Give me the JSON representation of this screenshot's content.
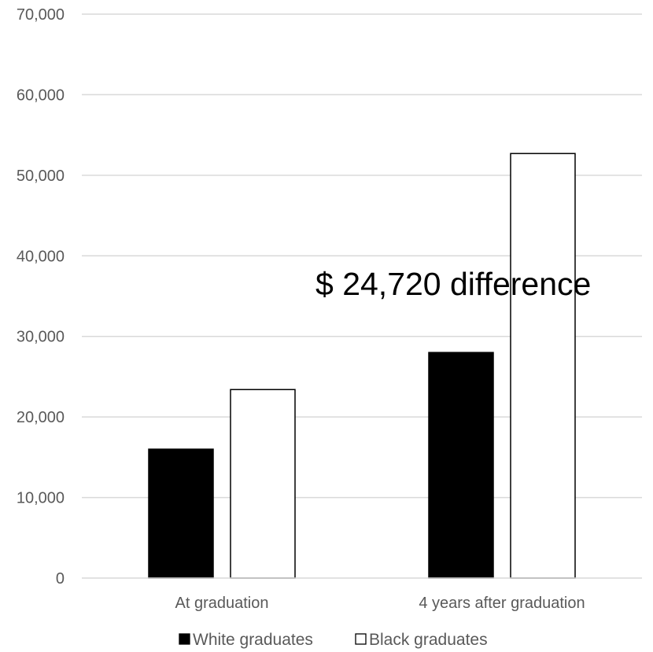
{
  "chart_data": {
    "type": "bar",
    "title": "",
    "xlabel": "",
    "ylabel": "",
    "categories": [
      "At graduation",
      "4 years after graduation"
    ],
    "series": [
      {
        "name": "White graduates",
        "values": [
          16000,
          28000
        ],
        "color": "#000000"
      },
      {
        "name": "Black graduates",
        "values": [
          23400,
          52700
        ],
        "color": "#ffffff"
      }
    ],
    "ylim": [
      0,
      70000
    ],
    "yticks": [
      "0",
      "10,000",
      "20,000",
      "30,000",
      "40,000",
      "50,000",
      "60,000",
      "70,000"
    ],
    "grid": true,
    "legend_position": "bottom",
    "annotation": "$ 24,720 difference"
  }
}
